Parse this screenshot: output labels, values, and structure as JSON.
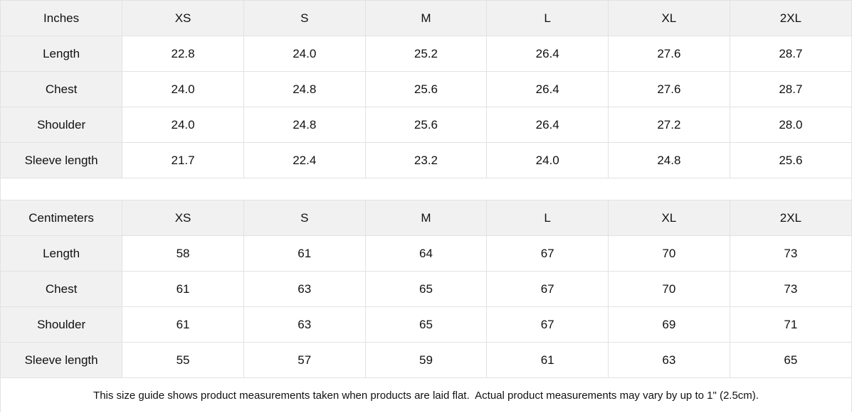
{
  "colors": {
    "header_bg": "#f1f1f1",
    "cell_bg": "#ffffff",
    "border": "#e2e2e2",
    "text": "#111111"
  },
  "tables": [
    {
      "unit_label": "Inches",
      "sizes": [
        "XS",
        "S",
        "M",
        "L",
        "XL",
        "2XL"
      ],
      "rows": [
        {
          "label": "Length",
          "values": [
            "22.8",
            "24.0",
            "25.2",
            "26.4",
            "27.6",
            "28.7"
          ]
        },
        {
          "label": "Chest",
          "values": [
            "24.0",
            "24.8",
            "25.6",
            "26.4",
            "27.6",
            "28.7"
          ]
        },
        {
          "label": "Shoulder",
          "values": [
            "24.0",
            "24.8",
            "25.6",
            "26.4",
            "27.2",
            "28.0"
          ]
        },
        {
          "label": "Sleeve length",
          "values": [
            "21.7",
            "22.4",
            "23.2",
            "24.0",
            "24.8",
            "25.6"
          ]
        }
      ]
    },
    {
      "unit_label": "Centimeters",
      "sizes": [
        "XS",
        "S",
        "M",
        "L",
        "XL",
        "2XL"
      ],
      "rows": [
        {
          "label": "Length",
          "values": [
            "58",
            "61",
            "64",
            "67",
            "70",
            "73"
          ]
        },
        {
          "label": "Chest",
          "values": [
            "61",
            "63",
            "65",
            "67",
            "70",
            "73"
          ]
        },
        {
          "label": "Shoulder",
          "values": [
            "61",
            "63",
            "65",
            "67",
            "69",
            "71"
          ]
        },
        {
          "label": "Sleeve length",
          "values": [
            "55",
            "57",
            "59",
            "61",
            "63",
            "65"
          ]
        }
      ]
    }
  ],
  "footnote": "This size guide shows product measurements taken when products are laid flat.  Actual product measurements may vary by up to 1\" (2.5cm)."
}
